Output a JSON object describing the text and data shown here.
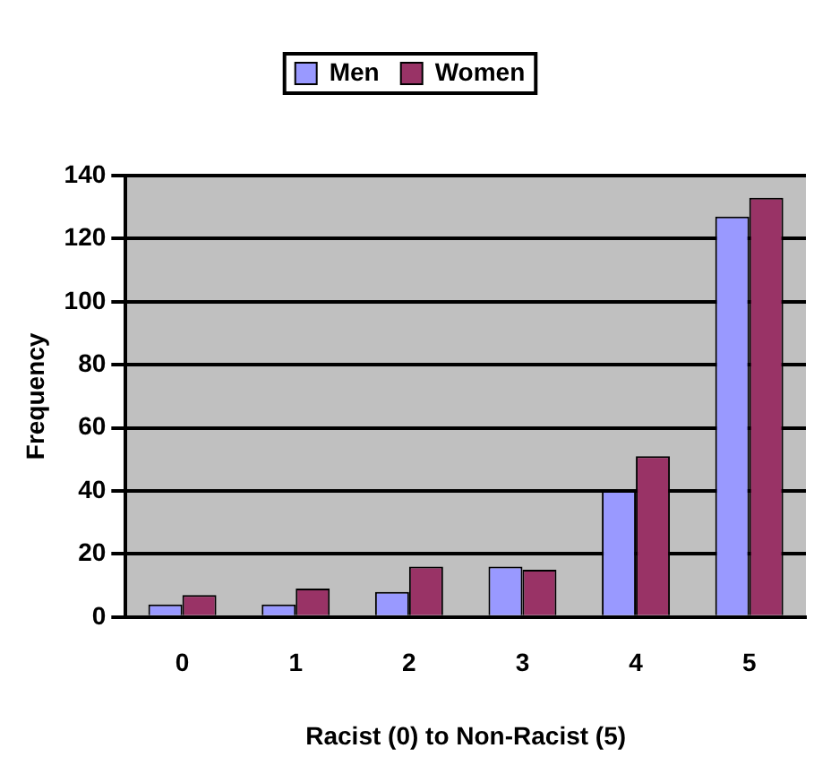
{
  "chart_data": {
    "type": "bar",
    "xlabel": "Racist (0) to Non-Racist (5)",
    "ylabel": "Frequency",
    "categories": [
      "0",
      "1",
      "2",
      "3",
      "4",
      "5"
    ],
    "series": [
      {
        "name": "Men",
        "color": "#9999ff",
        "values": [
          4,
          4,
          8,
          16,
          40,
          127
        ]
      },
      {
        "name": "Women",
        "color": "#993366",
        "values": [
          7,
          9,
          16,
          15,
          51,
          133
        ]
      }
    ],
    "ylim": [
      0,
      140
    ],
    "yticks": [
      0,
      20,
      40,
      60,
      80,
      100,
      120,
      140
    ],
    "grid": "y",
    "legend": "top"
  }
}
